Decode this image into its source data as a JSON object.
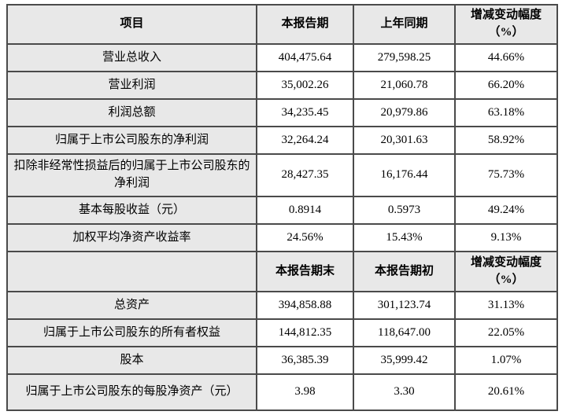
{
  "colors": {
    "cell_gray": "#e8e8e8",
    "border": "#4a4a4a",
    "background": "#ffffff",
    "text": "#000000"
  },
  "table": {
    "header1": {
      "item": "项目",
      "current": "本报告期",
      "prior": "上年同期",
      "change_line1": "增减变动幅度",
      "change_line2": "（%）"
    },
    "section1_rows": [
      {
        "label": "营业总收入",
        "current": "404,475.64",
        "prior": "279,598.25",
        "change": "44.66%"
      },
      {
        "label": "营业利润",
        "current": "35,002.26",
        "prior": "21,060.78",
        "change": "66.20%"
      },
      {
        "label": "利润总额",
        "current": "34,235.45",
        "prior": "20,979.86",
        "change": "63.18%"
      },
      {
        "label": "归属于上市公司股东的净利润",
        "current": "32,264.24",
        "prior": "20,301.63",
        "change": "58.92%"
      },
      {
        "label": "扣除非经常性损益后的归属于上市公司股东的净利润",
        "current": "28,427.35",
        "prior": "16,176.44",
        "change": "75.73%"
      },
      {
        "label": "基本每股收益（元）",
        "current": "0.8914",
        "prior": "0.5973",
        "change": "49.24%"
      },
      {
        "label": "加权平均净资产收益率",
        "current": "24.56%",
        "prior": "15.43%",
        "change": "9.13%"
      }
    ],
    "header2": {
      "item": "",
      "current": "本报告期末",
      "prior": "本报告期初",
      "change_line1": "增减变动幅度",
      "change_line2": "（%）"
    },
    "section2_rows": [
      {
        "label": "总资产",
        "current": "394,858.88",
        "prior": "301,123.74",
        "change": "31.13%"
      },
      {
        "label": "归属于上市公司股东的所有者权益",
        "current": "144,812.35",
        "prior": "118,647.00",
        "change": "22.05%"
      },
      {
        "label": "股本",
        "current": "36,385.39",
        "prior": "35,999.42",
        "change": "1.07%"
      },
      {
        "label": "归属于上市公司股东的每股净资产（元）",
        "current": "3.98",
        "prior": "3.30",
        "change": "20.61%"
      }
    ]
  }
}
